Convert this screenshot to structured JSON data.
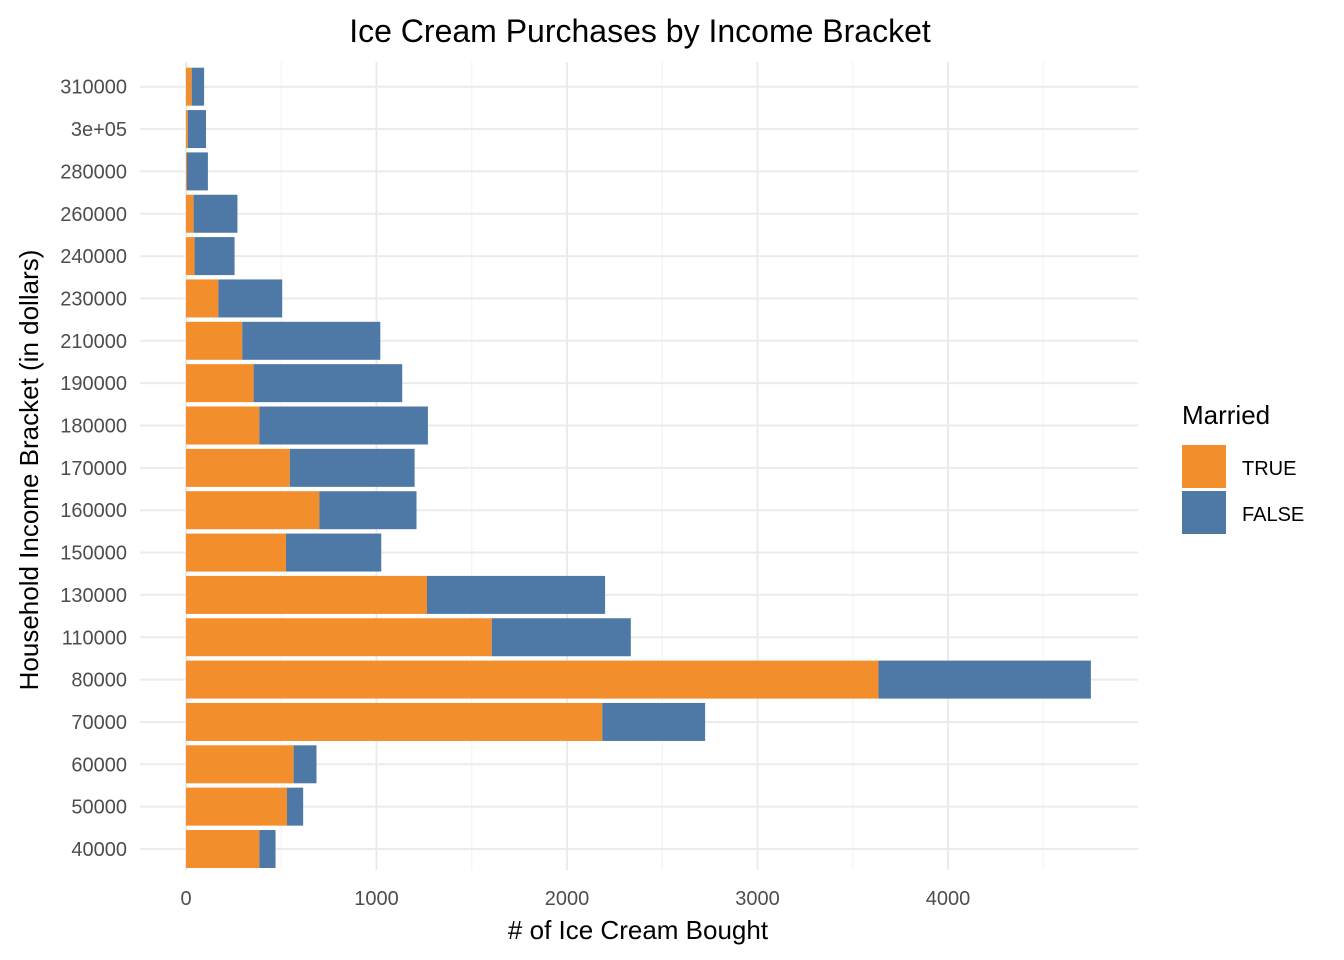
{
  "chart_data": {
    "type": "bar",
    "orientation": "horizontal",
    "stacked": true,
    "title": "Ice Cream Purchases by Income Bracket",
    "xlabel": "# of Ice Cream Bought",
    "ylabel": "Household Income Bracket (in dollars)",
    "xlim": [
      0,
      5000
    ],
    "xticks": [
      0,
      1000,
      2000,
      3000,
      4000
    ],
    "categories": [
      "40000",
      "50000",
      "60000",
      "70000",
      "80000",
      "110000",
      "130000",
      "150000",
      "160000",
      "170000",
      "180000",
      "190000",
      "210000",
      "230000",
      "240000",
      "260000",
      "280000",
      "3e+05",
      "310000"
    ],
    "series": [
      {
        "name": "TRUE",
        "color": "#F28E2B",
        "values": [
          385,
          530,
          565,
          2185,
          3635,
          1605,
          1265,
          525,
          700,
          545,
          385,
          355,
          295,
          170,
          45,
          40,
          5,
          10,
          30
        ]
      },
      {
        "name": "FALSE",
        "color": "#4E79A7",
        "values": [
          85,
          85,
          120,
          540,
          1115,
          730,
          935,
          500,
          510,
          655,
          885,
          780,
          725,
          335,
          210,
          230,
          110,
          95,
          65
        ]
      }
    ],
    "legend": {
      "title": "Married",
      "position": "right"
    },
    "grid": true
  }
}
